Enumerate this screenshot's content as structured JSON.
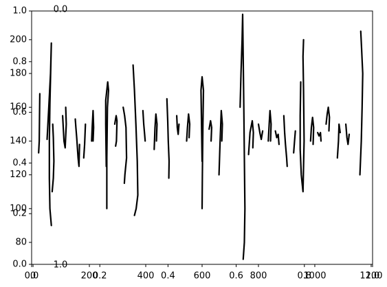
{
  "chart_data": [
    {
      "type": "axes-overlay",
      "role": "background",
      "xlim": [
        0.0,
        1.0
      ],
      "ylim": [
        0.0,
        1.0
      ],
      "xticks": [
        "0.0",
        "0.2",
        "0.4",
        "0.6",
        "0.8",
        "1.0"
      ],
      "yticks": [
        "0.0",
        "0.2",
        "0.4",
        "0.6",
        "0.8",
        "1.0"
      ]
    },
    {
      "type": "axes-overlay",
      "role": "inset-top-left",
      "xticks": [
        "0.0"
      ],
      "yticks": [
        "1.0"
      ]
    },
    {
      "type": "line",
      "role": "handwriting-strokes",
      "xlim": [
        -5,
        1205
      ],
      "ylim": [
        67,
        217
      ],
      "xticks": [
        "0",
        "200",
        "400",
        "600",
        "800",
        "1000",
        "1200"
      ],
      "xtick_values": [
        0,
        200,
        400,
        600,
        800,
        1000,
        1200
      ],
      "yticks": [
        "80",
        "100",
        "120",
        "140",
        "160",
        "180",
        "200"
      ],
      "ytick_values": [
        80,
        100,
        120,
        140,
        160,
        180,
        200
      ],
      "color": "#000000",
      "series": [
        {
          "points": [
            [
              20,
              133
            ],
            [
              22,
              140
            ],
            [
              23,
              155
            ],
            [
              24,
              168
            ]
          ]
        },
        {
          "points": [
            [
              50,
              141
            ],
            [
              55,
              157
            ],
            [
              62,
              180
            ],
            [
              65,
              198
            ],
            [
              60,
              162
            ],
            [
              58,
              140
            ],
            [
              58,
              118
            ],
            [
              60,
              100
            ],
            [
              65,
              90
            ]
          ]
        },
        {
          "points": [
            [
              70,
              150
            ],
            [
              72,
              142
            ],
            [
              74,
              128
            ],
            [
              72,
              118
            ],
            [
              68,
              110
            ]
          ]
        },
        {
          "points": [
            [
              105,
              155
            ],
            [
              110,
              140
            ],
            [
              114,
              136
            ],
            [
              118,
              150
            ],
            [
              116,
              160
            ]
          ]
        },
        {
          "points": [
            [
              150,
              153
            ],
            [
              152,
              148
            ],
            [
              155,
              142
            ],
            [
              160,
              130
            ],
            [
              163,
              125
            ],
            [
              165,
              138
            ]
          ]
        },
        {
          "points": [
            [
              180,
              130
            ],
            [
              183,
              138
            ],
            [
              186,
              150
            ]
          ]
        },
        {
          "points": [
            [
              208,
              140
            ],
            [
              210,
              148
            ],
            [
              213,
              158
            ],
            [
              215,
              148
            ],
            [
              213,
              140
            ]
          ]
        },
        {
          "points": [
            [
              260,
              125
            ],
            [
              258,
              150
            ],
            [
              258,
              164
            ],
            [
              265,
              175
            ],
            [
              268,
              170
            ],
            [
              264,
              160
            ],
            [
              262,
              130
            ],
            [
              262,
              100
            ]
          ]
        },
        {
          "points": [
            [
              290,
              150
            ],
            [
              295,
              155
            ],
            [
              298,
              152
            ],
            [
              296,
              140
            ],
            [
              293,
              137
            ]
          ]
        },
        {
          "points": [
            [
              320,
              160
            ],
            [
              325,
              155
            ],
            [
              330,
              148
            ],
            [
              332,
              130
            ],
            [
              326,
              120
            ],
            [
              324,
              115
            ]
          ]
        },
        {
          "points": [
            [
              355,
              185
            ],
            [
              360,
              170
            ],
            [
              365,
              150
            ],
            [
              370,
              128
            ],
            [
              372,
              108
            ],
            [
              366,
              100
            ],
            [
              360,
              96
            ]
          ]
        },
        {
          "points": [
            [
              390,
              158
            ],
            [
              393,
              150
            ],
            [
              396,
              144
            ],
            [
              398,
              140
            ]
          ]
        },
        {
          "points": [
            [
              430,
              135
            ],
            [
              433,
              148
            ],
            [
              436,
              156
            ],
            [
              440,
              150
            ],
            [
              438,
              140
            ]
          ]
        },
        {
          "points": [
            [
              475,
              165
            ],
            [
              478,
              152
            ],
            [
              480,
              140
            ],
            [
              483,
              128
            ],
            [
              482,
              118
            ]
          ]
        },
        {
          "points": [
            [
              510,
              155
            ],
            [
              512,
              148
            ],
            [
              515,
              144
            ],
            [
              518,
              150
            ]
          ]
        },
        {
          "points": [
            [
              545,
              140
            ],
            [
              548,
              148
            ],
            [
              552,
              156
            ],
            [
              556,
              150
            ],
            [
              554,
              142
            ]
          ]
        },
        {
          "points": [
            [
              600,
              128
            ],
            [
              598,
              150
            ],
            [
              596,
              170
            ],
            [
              600,
              178
            ],
            [
              605,
              170
            ],
            [
              603,
              150
            ],
            [
              601,
              120
            ],
            [
              600,
              100
            ]
          ]
        },
        {
          "points": [
            [
              625,
              147
            ],
            [
              630,
              152
            ],
            [
              634,
              148
            ],
            [
              632,
              140
            ]
          ]
        },
        {
          "points": [
            [
              660,
              120
            ],
            [
              664,
              140
            ],
            [
              668,
              158
            ],
            [
              672,
              150
            ],
            [
              670,
              140
            ]
          ]
        },
        {
          "points": [
            [
              735,
              160
            ],
            [
              738,
              180
            ],
            [
              742,
              200
            ],
            [
              744,
              215
            ],
            [
              746,
              190
            ],
            [
              748,
              160
            ],
            [
              750,
              130
            ],
            [
              752,
              100
            ],
            [
              750,
              80
            ],
            [
              746,
              70
            ]
          ]
        },
        {
          "points": [
            [
              765,
              132
            ],
            [
              770,
              145
            ],
            [
              778,
              152
            ],
            [
              782,
              145
            ],
            [
              780,
              136
            ]
          ]
        },
        {
          "points": [
            [
              800,
              150
            ],
            [
              805,
              145
            ],
            [
              810,
              141
            ],
            [
              815,
              146
            ]
          ]
        },
        {
          "points": [
            [
              835,
              140
            ],
            [
              838,
              150
            ],
            [
              841,
              158
            ],
            [
              845,
              150
            ],
            [
              843,
              140
            ]
          ]
        },
        {
          "points": [
            [
              860,
              146
            ],
            [
              865,
              142
            ],
            [
              870,
              144
            ],
            [
              873,
              138
            ]
          ]
        },
        {
          "points": [
            [
              890,
              155
            ],
            [
              893,
              145
            ],
            [
              896,
              138
            ],
            [
              900,
              130
            ],
            [
              902,
              125
            ]
          ]
        },
        {
          "points": [
            [
              925,
              133
            ],
            [
              928,
              140
            ],
            [
              931,
              146
            ]
          ]
        },
        {
          "points": [
            [
              950,
              175
            ],
            [
              948,
              155
            ],
            [
              948,
              135
            ],
            [
              952,
              120
            ],
            [
              958,
              110
            ],
            [
              962,
              140
            ],
            [
              960,
              170
            ],
            [
              958,
              190
            ],
            [
              960,
              200
            ]
          ]
        },
        {
          "points": [
            [
              985,
              140
            ],
            [
              988,
              148
            ],
            [
              992,
              154
            ],
            [
              996,
              148
            ],
            [
              994,
              138
            ]
          ]
        },
        {
          "points": [
            [
              1010,
              145
            ],
            [
              1015,
              143
            ],
            [
              1020,
              145
            ],
            [
              1022,
              140
            ]
          ]
        },
        {
          "points": [
            [
              1040,
              150
            ],
            [
              1044,
              156
            ],
            [
              1048,
              160
            ],
            [
              1052,
              154
            ],
            [
              1050,
              146
            ]
          ]
        },
        {
          "points": [
            [
              1080,
              130
            ],
            [
              1084,
              140
            ],
            [
              1086,
              150
            ],
            [
              1090,
              145
            ]
          ]
        },
        {
          "points": [
            [
              1110,
              150
            ],
            [
              1114,
              142
            ],
            [
              1118,
              138
            ],
            [
              1122,
              144
            ]
          ]
        },
        {
          "points": [
            [
              1160,
              120
            ],
            [
              1165,
              140
            ],
            [
              1168,
              160
            ],
            [
              1170,
              180
            ],
            [
              1166,
              195
            ],
            [
              1163,
              205
            ]
          ]
        }
      ]
    }
  ]
}
